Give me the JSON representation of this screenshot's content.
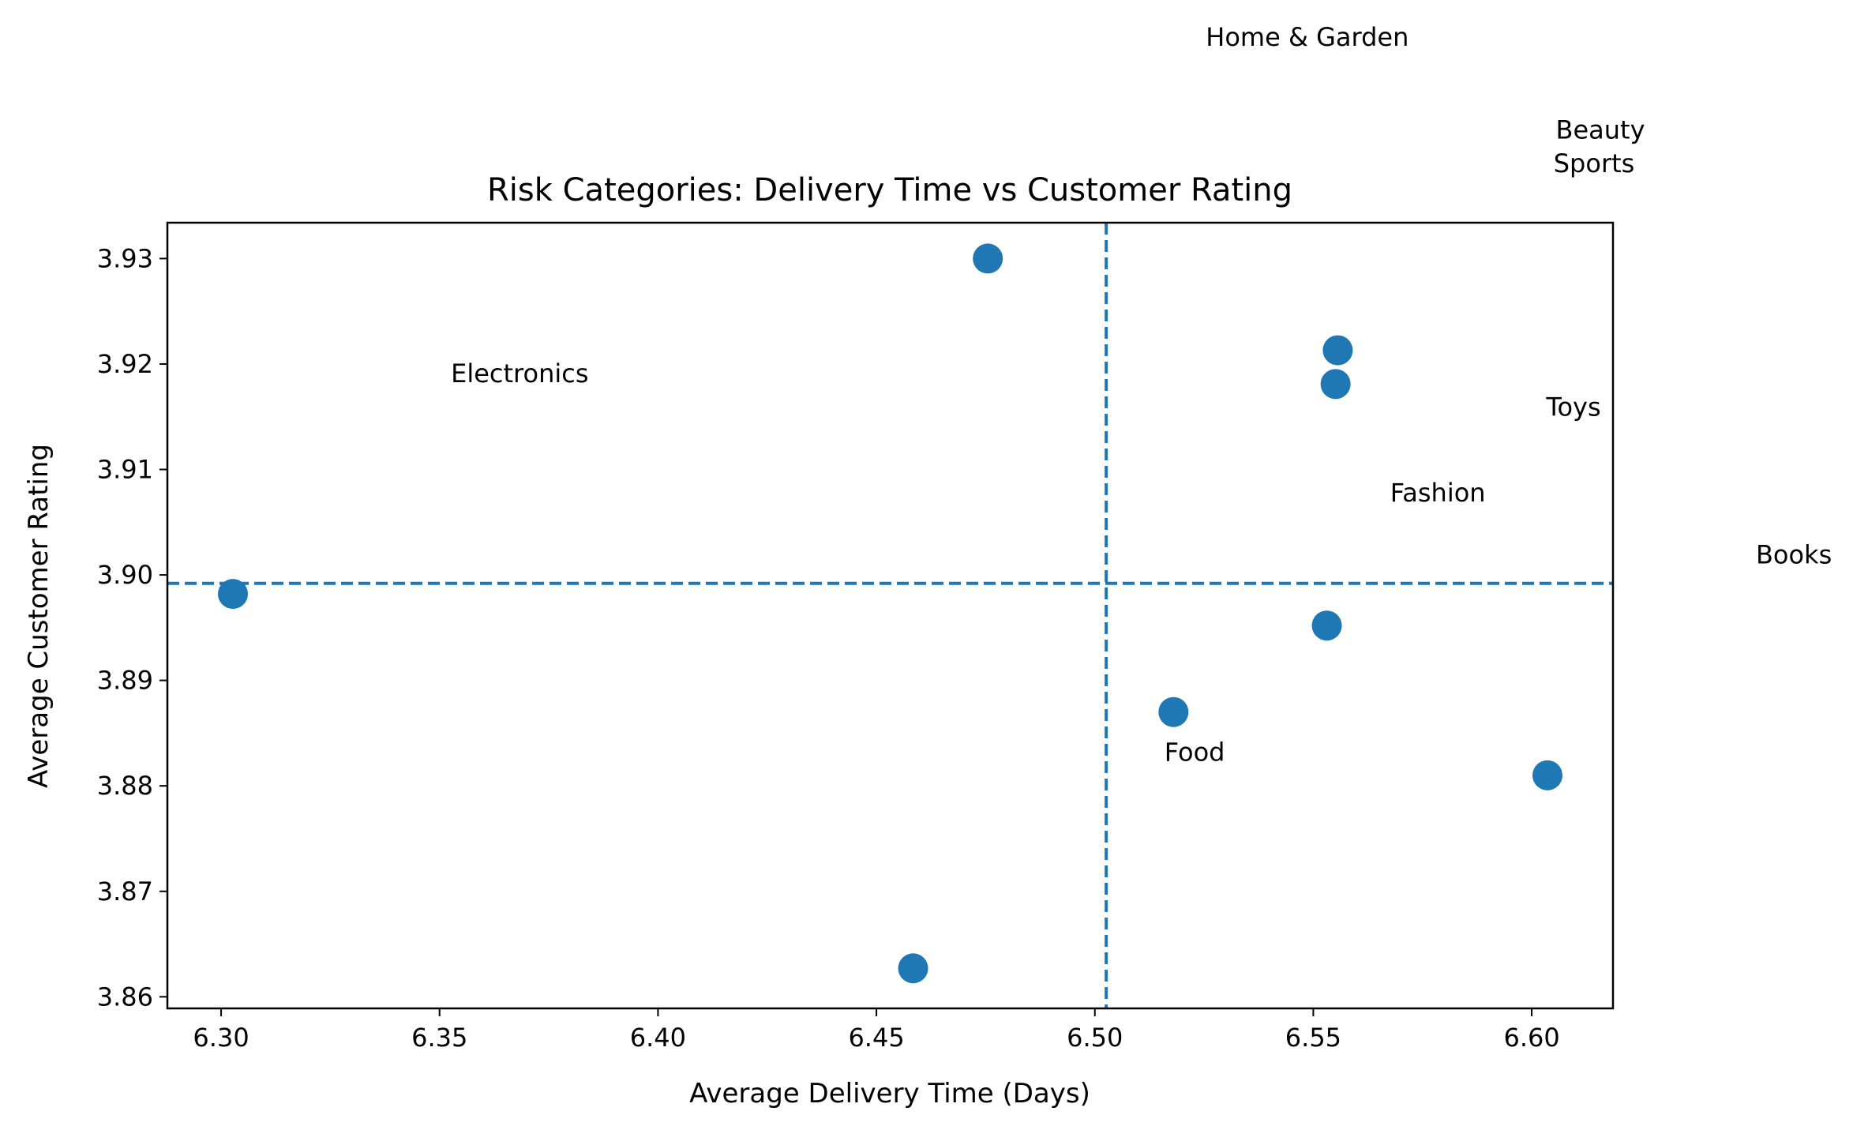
{
  "chart_data": {
    "type": "scatter",
    "title": "Risk Categories: Delivery Time vs Customer Rating",
    "xlabel": "Average Delivery Time (Days)",
    "ylabel": "Average Customer Rating",
    "xlim": [
      6.2877,
      6.6186
    ],
    "ylim": [
      3.8589,
      3.9334
    ],
    "xticks": [
      "6.30",
      "6.35",
      "6.40",
      "6.45",
      "6.50",
      "6.55",
      "6.60"
    ],
    "yticks": [
      "3.86",
      "3.87",
      "3.88",
      "3.89",
      "3.90",
      "3.91",
      "3.92",
      "3.93"
    ],
    "grid": false,
    "color": "#1f77b4",
    "points": [
      {
        "x": 6.4755,
        "y": 3.93
      },
      {
        "x": 6.5556,
        "y": 3.9213
      },
      {
        "x": 6.5551,
        "y": 3.9181
      },
      {
        "x": 6.3027,
        "y": 3.8982
      },
      {
        "x": 6.5531,
        "y": 3.8952
      },
      {
        "x": 6.518,
        "y": 3.887
      },
      {
        "x": 6.6036,
        "y": 3.881
      },
      {
        "x": 6.4584,
        "y": 3.8627
      }
    ],
    "reference_lines": {
      "vertical_x": 6.5026,
      "horizontal_y": 3.8992,
      "style": "dashed"
    },
    "annotations": [
      {
        "text": "Electronics",
        "x": 6.3526,
        "y": 3.9191
      },
      {
        "text": "Home & Garden",
        "x": 6.5254,
        "y": 3.951
      },
      {
        "text": "Beauty",
        "x": 6.6055,
        "y": 3.9422
      },
      {
        "text": "Sports",
        "x": 6.605,
        "y": 3.939
      },
      {
        "text": "Toys",
        "x": 6.6033,
        "y": 3.9159
      },
      {
        "text": "Fashion",
        "x": 6.5676,
        "y": 3.9078
      },
      {
        "text": "Books",
        "x": 6.6513,
        "y": 3.9019
      },
      {
        "text": "Food",
        "x": 6.5159,
        "y": 3.8832
      }
    ]
  }
}
